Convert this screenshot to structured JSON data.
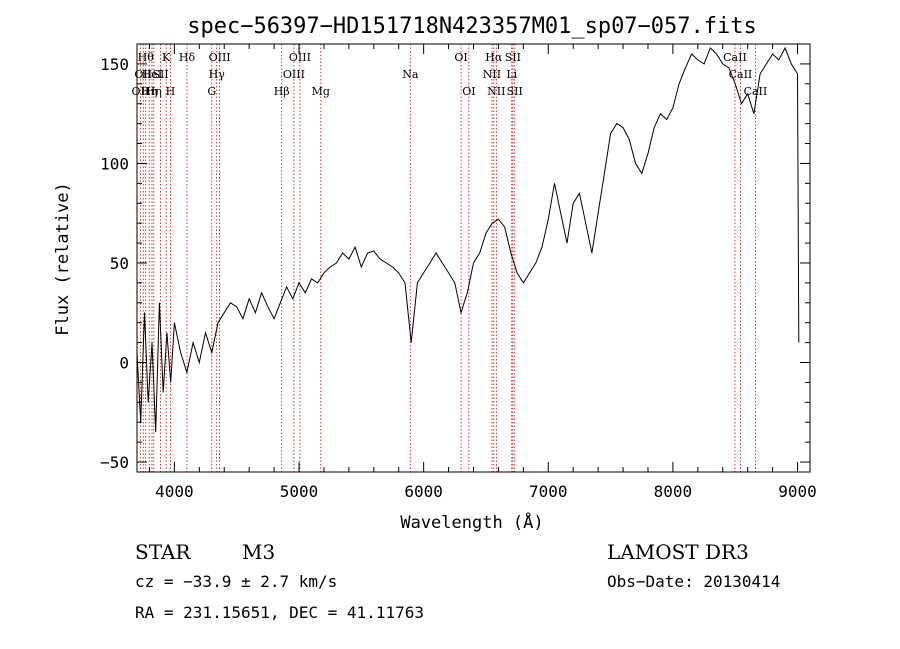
{
  "chart_data": {
    "type": "line",
    "title": "spec−56397−HD151718N423357M01_sp07−057.fits",
    "xlabel": "Wavelength (Å)",
    "ylabel": "Flux (relative)",
    "xlim": [
      3700,
      9100
    ],
    "ylim": [
      -55,
      160
    ],
    "x_ticks": [
      {
        "value": 4000,
        "label": "4000"
      },
      {
        "value": 5000,
        "label": "5000"
      },
      {
        "value": 6000,
        "label": "6000"
      },
      {
        "value": 7000,
        "label": "7000"
      },
      {
        "value": 8000,
        "label": "8000"
      },
      {
        "value": 9000,
        "label": "9000"
      }
    ],
    "y_ticks": [
      {
        "value": -50,
        "label": "−50"
      },
      {
        "value": 0,
        "label": "0"
      },
      {
        "value": 50,
        "label": "50"
      },
      {
        "value": 100,
        "label": "100"
      },
      {
        "value": 150,
        "label": "150"
      }
    ],
    "series": [
      {
        "name": "spectrum",
        "x": [
          3700,
          3730,
          3760,
          3790,
          3820,
          3850,
          3880,
          3910,
          3940,
          3970,
          4000,
          4050,
          4100,
          4150,
          4200,
          4250,
          4300,
          4350,
          4400,
          4450,
          4500,
          4550,
          4600,
          4650,
          4700,
          4750,
          4800,
          4850,
          4900,
          4950,
          5000,
          5050,
          5100,
          5150,
          5200,
          5250,
          5300,
          5350,
          5400,
          5450,
          5500,
          5550,
          5600,
          5650,
          5700,
          5750,
          5800,
          5850,
          5900,
          5950,
          6000,
          6050,
          6100,
          6150,
          6200,
          6250,
          6300,
          6350,
          6400,
          6450,
          6500,
          6550,
          6600,
          6650,
          6700,
          6750,
          6800,
          6850,
          6900,
          6950,
          7000,
          7050,
          7100,
          7150,
          7200,
          7250,
          7300,
          7350,
          7400,
          7450,
          7500,
          7550,
          7600,
          7650,
          7700,
          7750,
          7800,
          7850,
          7900,
          7950,
          8000,
          8050,
          8100,
          8150,
          8200,
          8250,
          8300,
          8350,
          8400,
          8450,
          8500,
          8550,
          8600,
          8650,
          8700,
          8750,
          8800,
          8850,
          8900,
          8950,
          9000,
          9010
        ],
        "y": [
          5,
          -30,
          25,
          -20,
          10,
          -35,
          30,
          -15,
          15,
          -10,
          20,
          5,
          -5,
          10,
          0,
          15,
          5,
          20,
          25,
          30,
          28,
          22,
          32,
          25,
          35,
          28,
          22,
          30,
          38,
          32,
          40,
          35,
          42,
          40,
          45,
          48,
          50,
          55,
          52,
          58,
          48,
          55,
          56,
          52,
          50,
          48,
          45,
          40,
          10,
          40,
          45,
          50,
          55,
          50,
          45,
          40,
          25,
          35,
          50,
          55,
          65,
          70,
          72,
          68,
          55,
          45,
          40,
          45,
          50,
          58,
          72,
          90,
          75,
          60,
          80,
          85,
          70,
          55,
          75,
          95,
          115,
          120,
          118,
          112,
          100,
          95,
          105,
          118,
          125,
          122,
          128,
          140,
          148,
          155,
          152,
          150,
          158,
          155,
          150,
          148,
          140,
          130,
          135,
          125,
          145,
          150,
          155,
          152,
          158,
          150,
          145,
          10
        ]
      }
    ],
    "spectral_lines": [
      {
        "wavelength": 3727,
        "label": "OII",
        "row": 2
      },
      {
        "wavelength": 3750,
        "label": "OII",
        "row": 1
      },
      {
        "wavelength": 3770,
        "label": "Hθ",
        "row": 0
      },
      {
        "wavelength": 3798,
        "label": "Hη",
        "row": 2
      },
      {
        "wavelength": 3820,
        "label": "HeI",
        "row": 1
      },
      {
        "wavelength": 3835,
        "label": "Hη",
        "row": 2
      },
      {
        "wavelength": 3889,
        "label": "SII",
        "row": 1
      },
      {
        "wavelength": 3934,
        "label": "K",
        "row": 0
      },
      {
        "wavelength": 3968,
        "label": "H",
        "row": 2
      },
      {
        "wavelength": 4101,
        "label": "Hδ",
        "row": 0
      },
      {
        "wavelength": 4300,
        "label": "G",
        "row": 2
      },
      {
        "wavelength": 4340,
        "label": "Hγ",
        "row": 1
      },
      {
        "wavelength": 4363,
        "label": "OIII",
        "row": 0
      },
      {
        "wavelength": 4861,
        "label": "Hβ",
        "row": 2
      },
      {
        "wavelength": 4959,
        "label": "OIII",
        "row": 1
      },
      {
        "wavelength": 5007,
        "label": "OIII",
        "row": 0
      },
      {
        "wavelength": 5175,
        "label": "Mg",
        "row": 2
      },
      {
        "wavelength": 5893,
        "label": "Na",
        "row": 1
      },
      {
        "wavelength": 6300,
        "label": "OI",
        "row": 0
      },
      {
        "wavelength": 6363,
        "label": "OI",
        "row": 2
      },
      {
        "wavelength": 6548,
        "label": "NII",
        "row": 1
      },
      {
        "wavelength": 6563,
        "label": "Hα",
        "row": 0
      },
      {
        "wavelength": 6583,
        "label": "NII",
        "row": 2
      },
      {
        "wavelength": 6707,
        "label": "Li",
        "row": 1
      },
      {
        "wavelength": 6716,
        "label": "SII",
        "row": 0
      },
      {
        "wavelength": 6731,
        "label": "SII",
        "row": 2
      },
      {
        "wavelength": 8498,
        "label": "CaII",
        "row": 0
      },
      {
        "wavelength": 8542,
        "label": "CaII",
        "row": 1
      },
      {
        "wavelength": 8662,
        "label": "CaII",
        "row": 2
      }
    ]
  },
  "info": {
    "object_class": "STAR",
    "subclass": "M3",
    "survey": "LAMOST DR3",
    "cz": "cz = −33.9 ± 2.7 km/s",
    "obs_date": "Obs−Date: 20130414",
    "coords": "RA = 231.15651, DEC =  41.11763"
  },
  "colors": {
    "axis": "#000000",
    "spectrum": "#000000",
    "line_marker": "#cc0000"
  }
}
